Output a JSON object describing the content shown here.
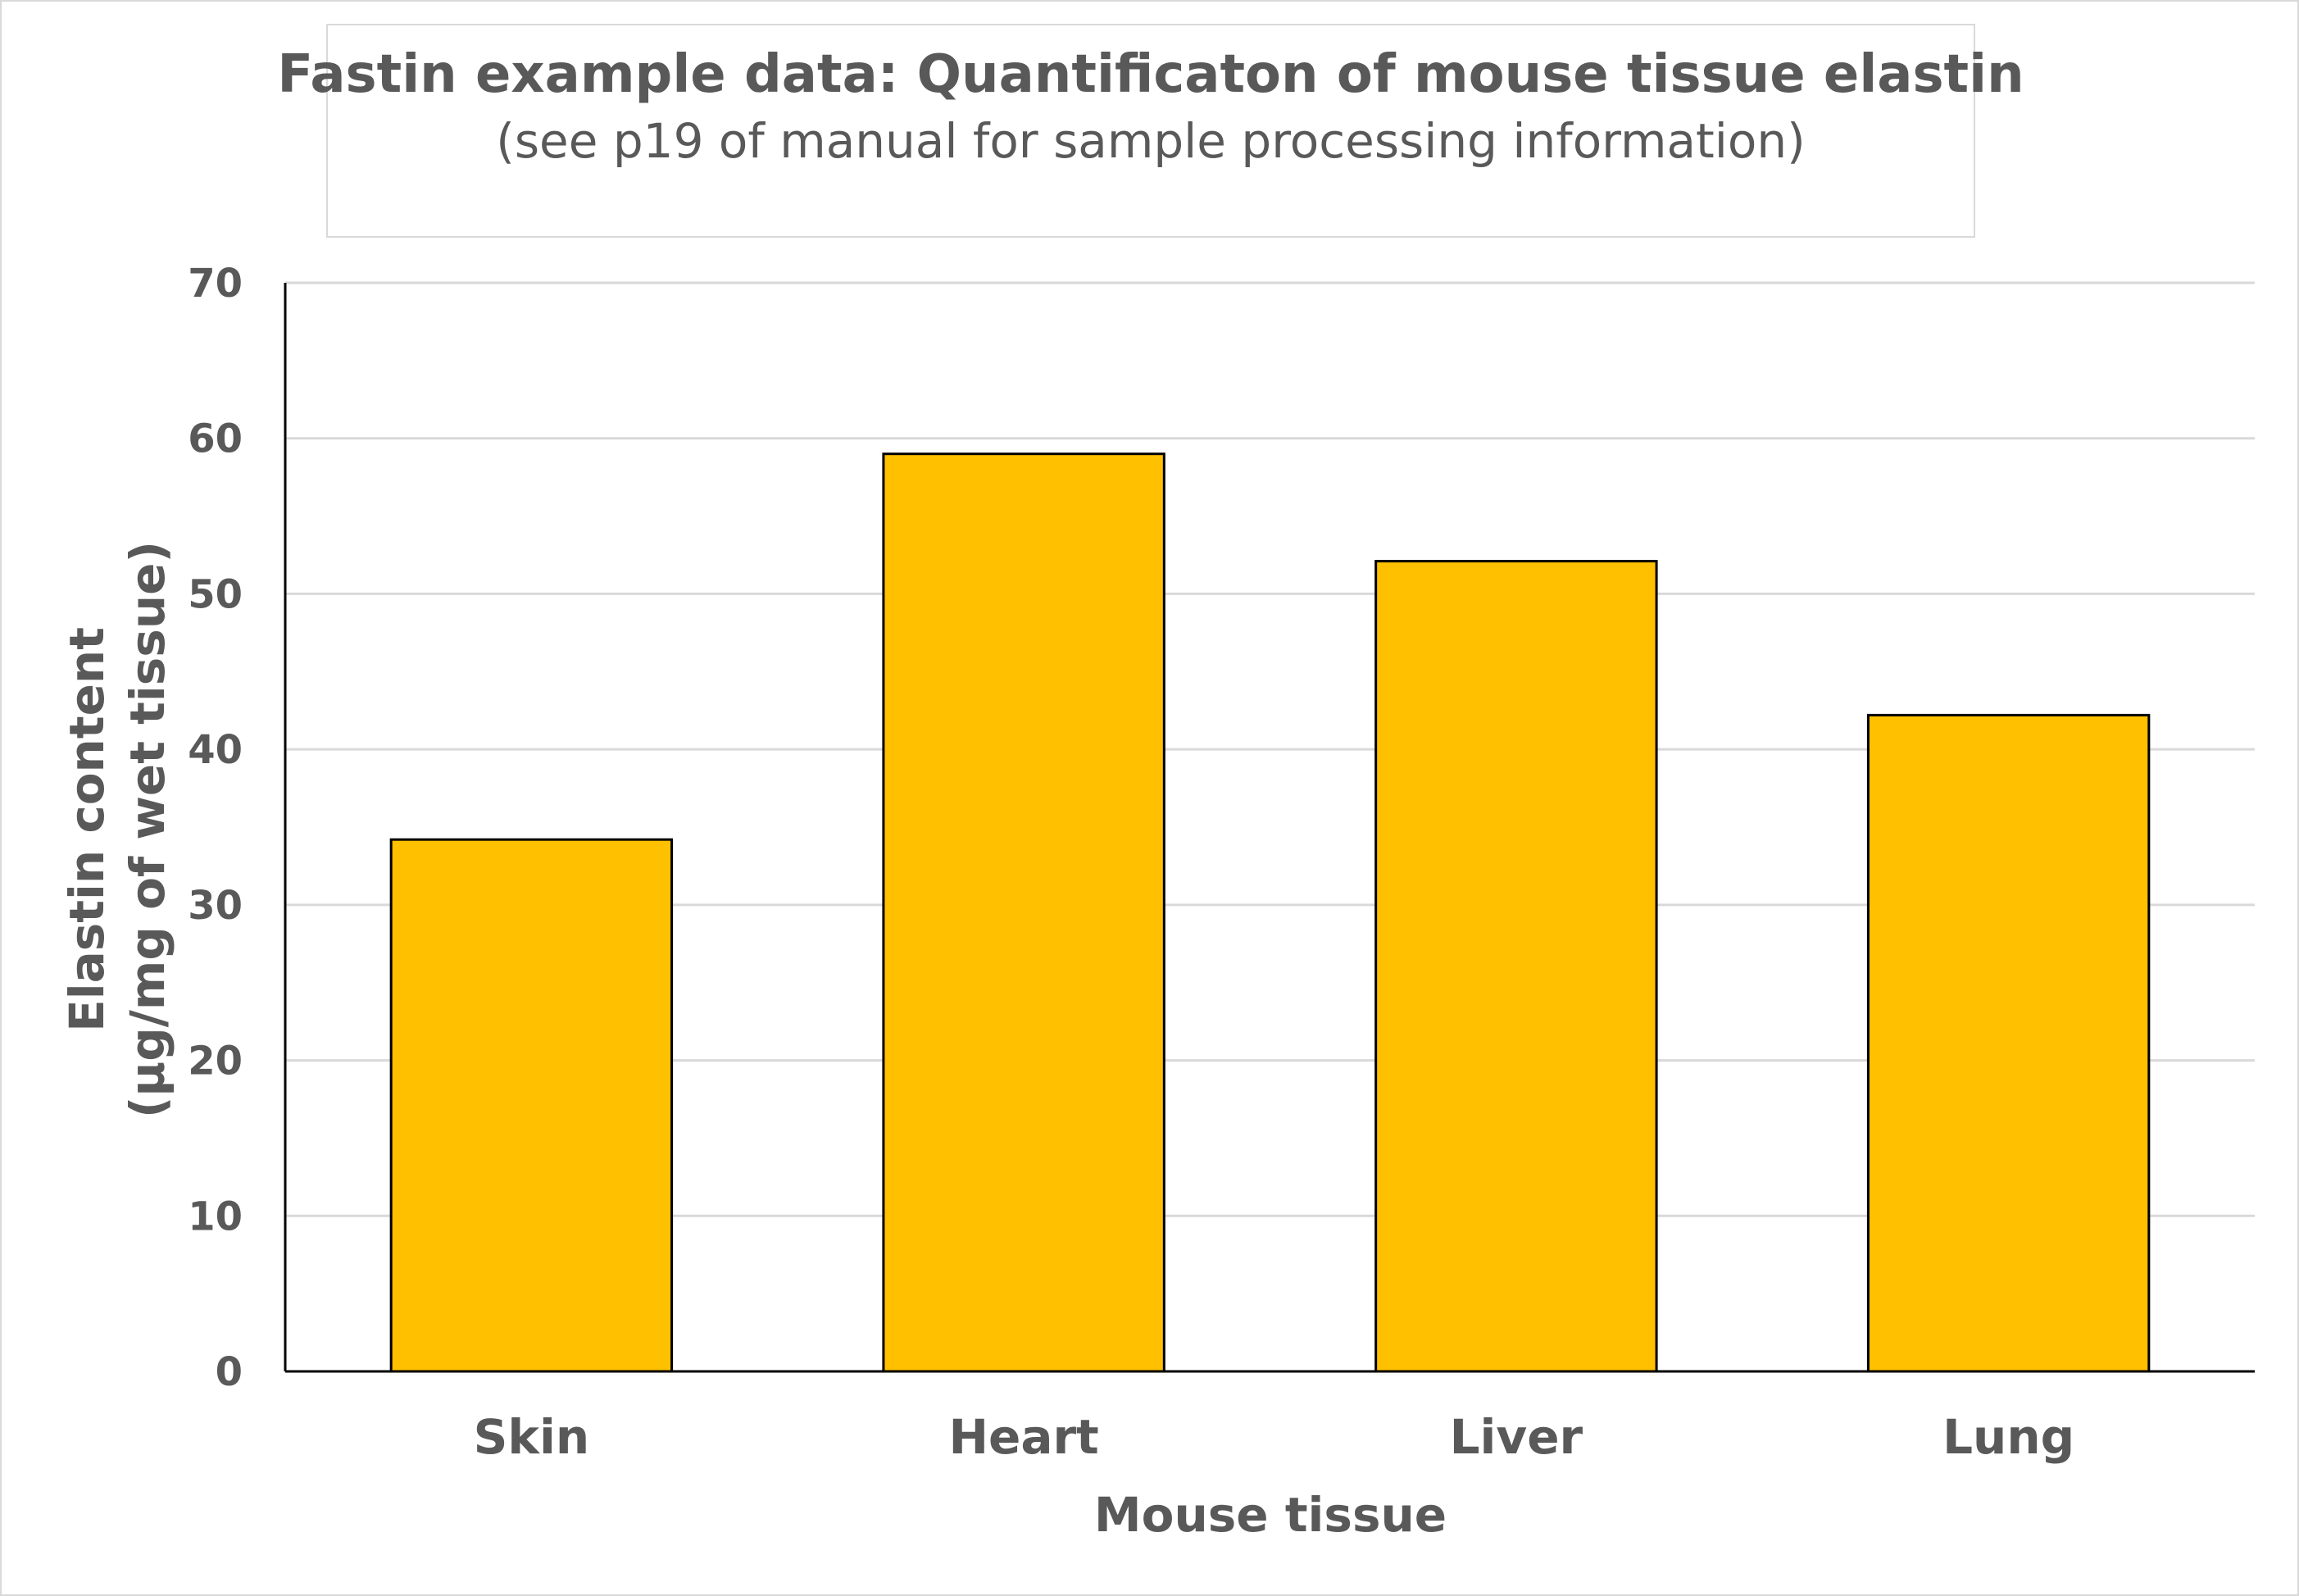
{
  "chart_data": {
    "type": "bar",
    "title": "Fastin example data: Quantificaton of mouse tissue elastin",
    "subtitle": "(see p19 of manual for sample processing information)",
    "xlabel": "Mouse tissue",
    "ylabel_line1": "Elastin content",
    "ylabel_line2": "(µg/mg of wet tissue)",
    "categories": [
      "Skin",
      "Heart",
      "Liver",
      "Lung"
    ],
    "values": [
      34.2,
      59.0,
      52.1,
      42.2
    ],
    "ylim": [
      0,
      70
    ],
    "yticks": [
      "0",
      "10",
      "20",
      "30",
      "40",
      "50",
      "60",
      "70"
    ],
    "grid": true,
    "legend": "none",
    "colors": {
      "bar_fill": "#ffc000",
      "bar_stroke": "#000000",
      "text": "#595959",
      "grid": "#d9d9d9",
      "axis": "#000000"
    }
  }
}
